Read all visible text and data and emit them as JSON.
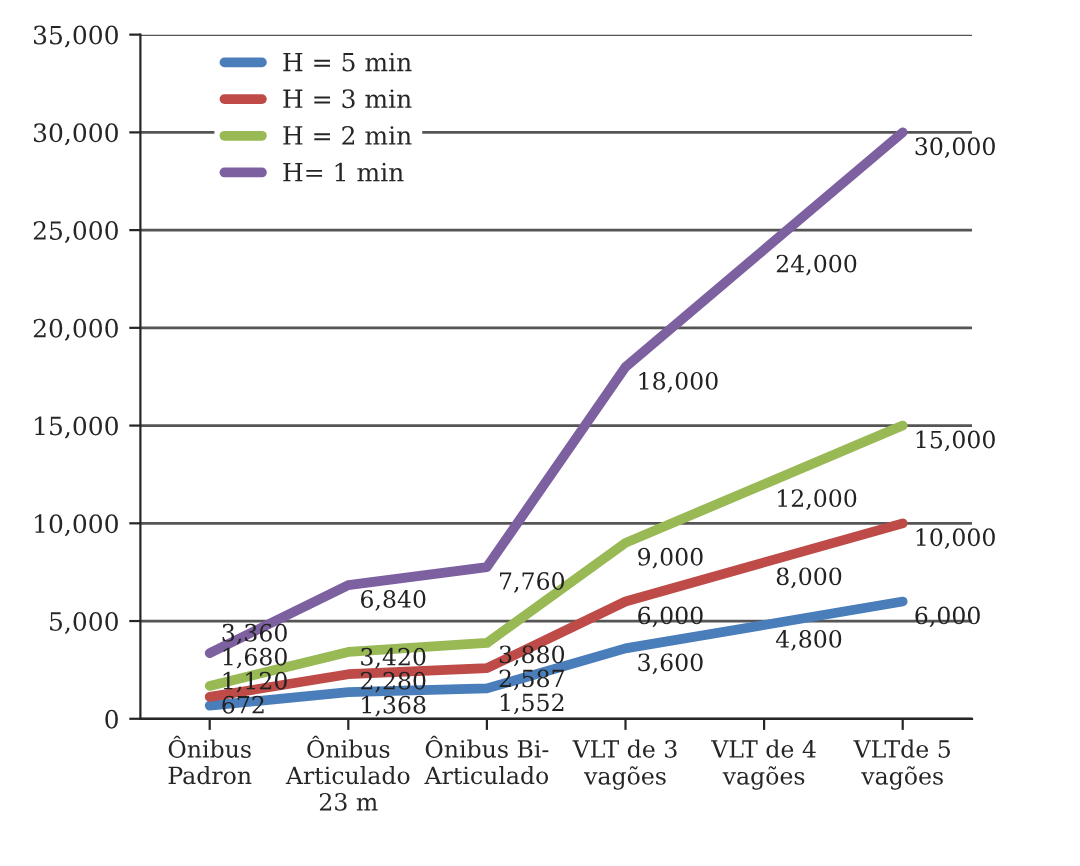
{
  "chart_data": {
    "type": "line",
    "categories": [
      "Ônibus\nPadron",
      "Ônibus\nArticulado\n23 m",
      "Ônibus Bi-\nArticulado",
      "VLT de 3\nvagões",
      "VLT de 4\nvagões",
      "VLTde 5\nvagões"
    ],
    "series": [
      {
        "name": "H = 5 min",
        "color": "#4a7ebb",
        "values": [
          672,
          1368,
          1552,
          3600,
          4800,
          6000
        ],
        "value_labels": [
          "672",
          "1,368",
          "1,552",
          "3,600",
          "4,800",
          "6,000"
        ]
      },
      {
        "name": "H = 3 min",
        "color": "#be4b48",
        "values": [
          1120,
          2280,
          2587,
          6000,
          8000,
          10000
        ],
        "value_labels": [
          "1,120",
          "2,280",
          "2,587",
          "6,000",
          "8,000",
          "10,000"
        ]
      },
      {
        "name": "H = 2 min",
        "color": "#98b954",
        "values": [
          1680,
          3420,
          3880,
          9000,
          12000,
          15000
        ],
        "value_labels": [
          "1,680",
          "3,420",
          "3,880",
          "9,000",
          "12,000",
          "15,000"
        ]
      },
      {
        "name": "H= 1 min",
        "color": "#7d60a0",
        "values": [
          3360,
          6840,
          7760,
          18000,
          24000,
          30000
        ],
        "value_labels": [
          "3,360",
          "6,840",
          "7,760",
          "18,000",
          "24,000",
          "30,000"
        ]
      }
    ],
    "ylim": [
      0,
      35000
    ],
    "yticks": [
      0,
      {
        "value": 5000,
        "label": "5,000"
      },
      {
        "value": 10000,
        "label": "10,000"
      },
      {
        "value": 15000,
        "label": "15,000"
      },
      {
        "value": 20000,
        "label": "20,000"
      },
      {
        "value": 25000,
        "label": "25,000"
      },
      {
        "value": 30000,
        "label": "30,000"
      },
      {
        "value": 35000,
        "label": "35,000"
      }
    ],
    "grid": "y",
    "legend": "top left",
    "marker": "none",
    "line_style": "solid"
  }
}
